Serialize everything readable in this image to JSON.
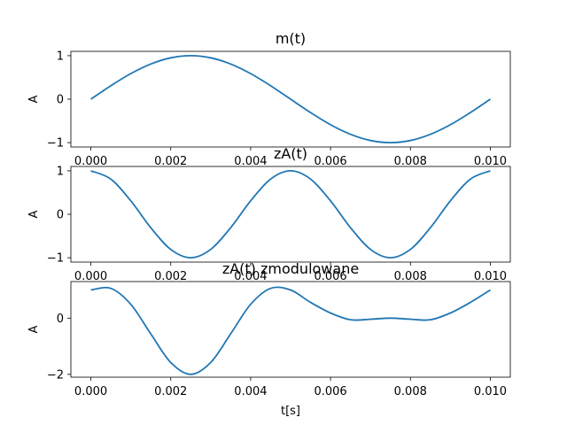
{
  "chart_data": [
    {
      "type": "line",
      "title": "m(t)",
      "ylabel": "A",
      "xlabel": "",
      "xlim": [
        -0.0005,
        0.0105
      ],
      "ylim": [
        -1.1,
        1.1
      ],
      "x_ticks": [
        0,
        0.002,
        0.004,
        0.006,
        0.008,
        0.01
      ],
      "x_tick_labels": [
        "0.000",
        "0.002",
        "0.004",
        "0.006",
        "0.008",
        "0.010"
      ],
      "y_ticks": [
        1,
        0,
        -1
      ],
      "y_tick_labels": [
        "1",
        "0",
        "−1"
      ],
      "series": [
        {
          "color": "#1f77b4",
          "x": [
            0,
            0.0005,
            0.001,
            0.0015,
            0.002,
            0.0025,
            0.003,
            0.0035,
            0.004,
            0.0045,
            0.005,
            0.0055,
            0.006,
            0.0065,
            0.007,
            0.0075,
            0.008,
            0.0085,
            0.009,
            0.0095,
            0.01
          ],
          "y": [
            0,
            0.309,
            0.588,
            0.809,
            0.951,
            1,
            0.951,
            0.809,
            0.588,
            0.309,
            0,
            -0.309,
            -0.588,
            -0.809,
            -0.951,
            -1,
            -0.951,
            -0.809,
            -0.588,
            -0.309,
            0
          ]
        }
      ]
    },
    {
      "type": "line",
      "title": "zA(t)",
      "ylabel": "A",
      "xlabel": "",
      "xlim": [
        -0.0005,
        0.0105
      ],
      "ylim": [
        -1.1,
        1.1
      ],
      "x_ticks": [
        0,
        0.002,
        0.004,
        0.006,
        0.008,
        0.01
      ],
      "x_tick_labels": [
        "0.000",
        "0.002",
        "0.004",
        "0.006",
        "0.008",
        "0.010"
      ],
      "y_ticks": [
        1,
        0,
        -1
      ],
      "y_tick_labels": [
        "1",
        "0",
        "−1"
      ],
      "series": [
        {
          "color": "#1f77b4",
          "x": [
            0,
            0.0005,
            0.001,
            0.0015,
            0.002,
            0.0025,
            0.003,
            0.0035,
            0.004,
            0.0045,
            0.005,
            0.0055,
            0.006,
            0.0065,
            0.007,
            0.0075,
            0.008,
            0.0085,
            0.009,
            0.0095,
            0.01
          ],
          "y": [
            1,
            0.809,
            0.309,
            -0.309,
            -0.809,
            -1,
            -0.809,
            -0.309,
            0.309,
            0.809,
            1,
            0.809,
            0.309,
            -0.309,
            -0.809,
            -1,
            -0.809,
            -0.309,
            0.309,
            0.809,
            1
          ]
        }
      ]
    },
    {
      "type": "line",
      "title": "zA(t) zmodulowane",
      "ylabel": "A",
      "xlabel": "t[s]",
      "xlim": [
        -0.0005,
        0.0105
      ],
      "ylim": [
        -2.1,
        1.3
      ],
      "x_ticks": [
        0,
        0.002,
        0.004,
        0.006,
        0.008,
        0.01
      ],
      "x_tick_labels": [
        "0.000",
        "0.002",
        "0.004",
        "0.006",
        "0.008",
        "0.010"
      ],
      "y_ticks": [
        0,
        -2
      ],
      "y_tick_labels": [
        "0",
        "−2"
      ],
      "series": [
        {
          "color": "#1f77b4",
          "x": [
            0,
            0.0005,
            0.001,
            0.0015,
            0.002,
            0.0025,
            0.003,
            0.0035,
            0.004,
            0.0045,
            0.005,
            0.0055,
            0.006,
            0.0065,
            0.007,
            0.0075,
            0.008,
            0.0085,
            0.009,
            0.0095,
            0.01
          ],
          "y": [
            1,
            1.059,
            0.491,
            -0.559,
            -1.578,
            -2,
            -1.578,
            -0.559,
            0.491,
            1.059,
            1,
            0.559,
            0.182,
            -0.059,
            -0.039,
            0,
            -0.039,
            -0.059,
            0.182,
            0.559,
            1
          ]
        }
      ]
    }
  ]
}
